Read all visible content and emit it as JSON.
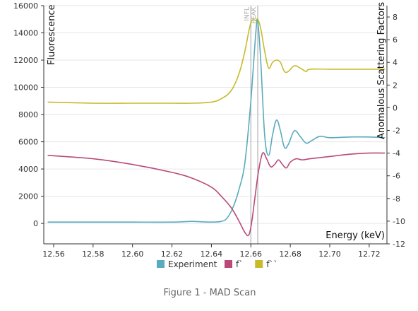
{
  "caption": "Figure 1 - MAD Scan",
  "chart_data": {
    "type": "line",
    "xlabel": "Energy (keV)",
    "ylabel_left": "Fluorescence",
    "ylabel_right": "Anomalous Scattering Factors",
    "xlim": [
      12.555,
      12.729
    ],
    "ylim_left": [
      -1500,
      16000
    ],
    "ylim_right": [
      -12,
      9
    ],
    "x_ticks": [
      "12.56",
      "12.58",
      "12.60",
      "12.62",
      "12.64",
      "12.66",
      "12.68",
      "12.70",
      "12.72"
    ],
    "y_left_ticks": [
      "0",
      "2000",
      "4000",
      "6000",
      "8000",
      "10000",
      "12000",
      "14000",
      "16000"
    ],
    "y_right_ticks": [
      "-12",
      "-10",
      "-8",
      "-6",
      "-4",
      "-2",
      "0",
      "2",
      "4",
      "6",
      "8"
    ],
    "markers": [
      {
        "label": "INFL",
        "x": 12.66,
        "color": "#b0b0b0"
      },
      {
        "label": "PEAK",
        "x": 12.6635,
        "color": "#b0b0b0"
      }
    ],
    "legend": [
      {
        "label": "Experiment",
        "color": "#5aabbd"
      },
      {
        "label": "f`",
        "color": "#b94a78"
      },
      {
        "label": "f``",
        "color": "#c7bb2c"
      }
    ],
    "series": [
      {
        "name": "Experiment",
        "axis": "left",
        "color": "#5aabbd",
        "x": [
          12.557,
          12.58,
          12.6,
          12.62,
          12.63,
          12.635,
          12.64,
          12.645,
          12.648,
          12.651,
          12.654,
          12.657,
          12.66,
          12.6625,
          12.6635,
          12.665,
          12.667,
          12.669,
          12.671,
          12.673,
          12.675,
          12.677,
          12.679,
          12.682,
          12.685,
          12.688,
          12.691,
          12.695,
          12.7,
          12.71,
          12.72,
          12.728
        ],
        "values": [
          100,
          100,
          100,
          100,
          150,
          120,
          100,
          150,
          400,
          1200,
          2500,
          4500,
          9000,
          14000,
          14800,
          12000,
          6500,
          5000,
          6500,
          7600,
          6800,
          5600,
          5800,
          6800,
          6400,
          5900,
          6100,
          6400,
          6300,
          6350,
          6350,
          6300
        ]
      },
      {
        "name": "f`",
        "axis": "right",
        "color": "#b94a78",
        "x": [
          12.557,
          12.58,
          12.6,
          12.62,
          12.63,
          12.64,
          12.645,
          12.65,
          12.654,
          12.657,
          12.659,
          12.6605,
          12.662,
          12.664,
          12.666,
          12.668,
          12.67,
          12.672,
          12.674,
          12.676,
          12.678,
          12.68,
          12.683,
          12.686,
          12.69,
          12.7,
          12.71,
          12.72,
          12.728
        ],
        "values": [
          -4.2,
          -4.5,
          -5.0,
          -5.7,
          -6.2,
          -7.0,
          -7.8,
          -8.8,
          -10.0,
          -11.0,
          -11.2,
          -10.0,
          -8.0,
          -5.5,
          -4.0,
          -4.5,
          -5.2,
          -5.0,
          -4.6,
          -5.0,
          -5.3,
          -4.8,
          -4.5,
          -4.6,
          -4.5,
          -4.3,
          -4.1,
          -4.0,
          -4.0
        ]
      },
      {
        "name": "f``",
        "axis": "right",
        "color": "#c7bb2c",
        "x": [
          12.557,
          12.58,
          12.6,
          12.62,
          12.63,
          12.64,
          12.645,
          12.65,
          12.654,
          12.657,
          12.66,
          12.6625,
          12.6635,
          12.665,
          12.667,
          12.669,
          12.671,
          12.673,
          12.675,
          12.677,
          12.679,
          12.682,
          12.685,
          12.688,
          12.69,
          12.7,
          12.71,
          12.72,
          12.728
        ],
        "values": [
          0.5,
          0.4,
          0.4,
          0.4,
          0.4,
          0.5,
          0.8,
          1.5,
          3.0,
          5.0,
          7.5,
          7.7,
          7.8,
          7.0,
          5.0,
          3.5,
          4.0,
          4.2,
          4.0,
          3.2,
          3.2,
          3.7,
          3.5,
          3.2,
          3.4,
          3.4,
          3.4,
          3.4,
          3.4
        ]
      }
    ]
  }
}
